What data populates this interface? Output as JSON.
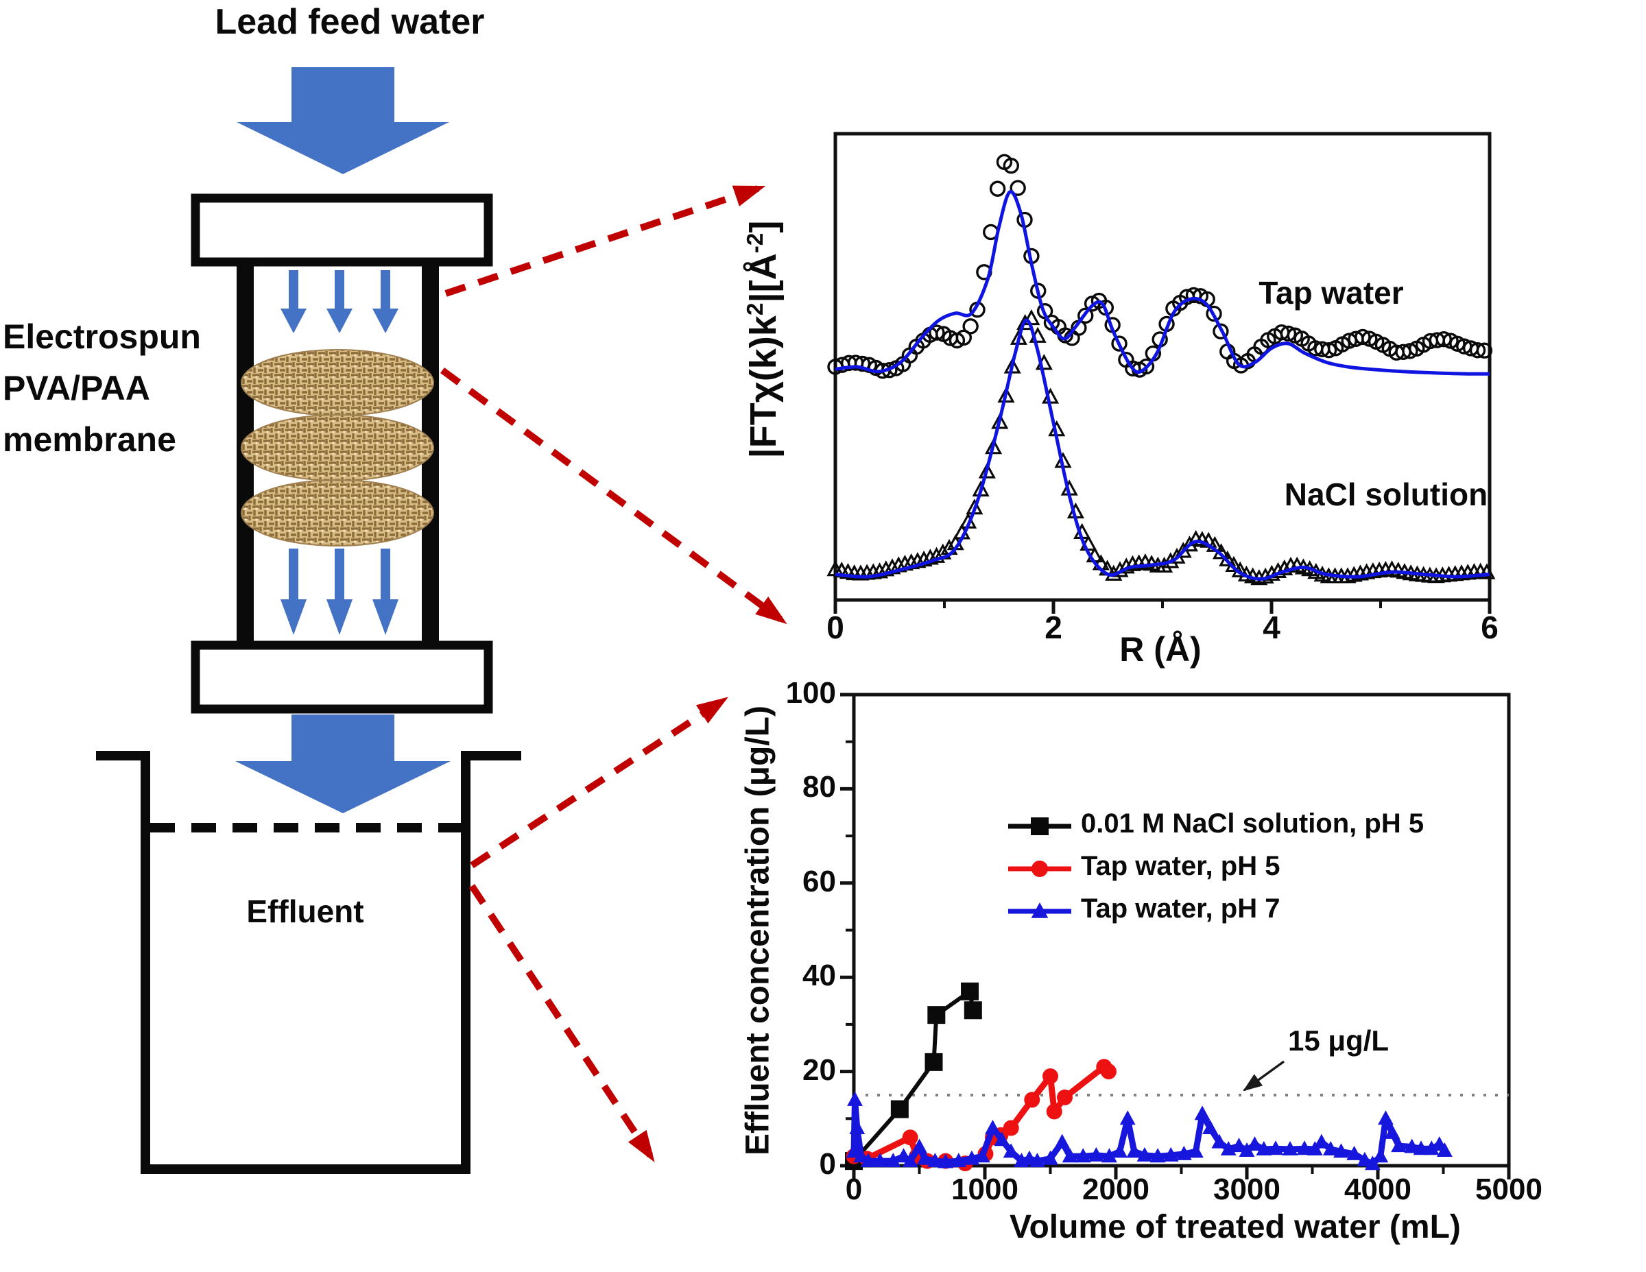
{
  "figure": {
    "title": "Lead feed water",
    "membrane_label_lines": [
      "Electrospun",
      "PVA/PAA",
      "membrane"
    ],
    "effluent_label": "Effluent",
    "colors": {
      "diagram_arrow_blue": "#4472C4",
      "outline_black": "#0a0a0a",
      "membrane_tan": "#d9bd86",
      "membrane_weave_brown": "#8d6c3a",
      "red_dashed_arrow": "#C00000",
      "fit_line_blue": "#0f14e0",
      "series_red": "#ee1111",
      "series_blue": "#1616dd",
      "threshold_gray": "#808080"
    }
  },
  "chart_data": [
    {
      "type": "line",
      "id": "exafs",
      "xlabel": "R (Å)",
      "ylabel": "|FTχ(k)k2|[Å-2]",
      "ylabel_segments": [
        {
          "t": "|FTχ(k)k"
        },
        {
          "t": "2",
          "sup": true
        },
        {
          "t": "|[Å"
        },
        {
          "t": "-2",
          "sup": true
        },
        {
          "t": "]"
        }
      ],
      "xlim": [
        0,
        6
      ],
      "ylim": [
        0,
        1
      ],
      "xticks": [
        0,
        2,
        4,
        6
      ],
      "xminor": [
        1,
        3,
        5
      ],
      "grid": false,
      "legend_position": "none",
      "annotations": [
        {
          "text": "Tap water",
          "x": 4.55,
          "y": 0.66
        },
        {
          "text": "NaCl solution",
          "x": 5.05,
          "y": 0.225
        }
      ],
      "series": [
        {
          "name": "Tap water (EXAFS data)",
          "kind": "markers",
          "marker": "circle",
          "color": "#0a0a0a",
          "marker_step": 0.062,
          "points": [
            [
              0,
              0.5
            ],
            [
              0.15,
              0.51
            ],
            [
              0.3,
              0.505
            ],
            [
              0.45,
              0.49
            ],
            [
              0.6,
              0.5
            ],
            [
              0.75,
              0.545
            ],
            [
              0.9,
              0.575
            ],
            [
              1.0,
              0.57
            ],
            [
              1.1,
              0.555
            ],
            [
              1.2,
              0.565
            ],
            [
              1.3,
              0.62
            ],
            [
              1.4,
              0.75
            ],
            [
              1.5,
              0.9
            ],
            [
              1.57,
              0.955
            ],
            [
              1.65,
              0.91
            ],
            [
              1.75,
              0.8
            ],
            [
              1.85,
              0.67
            ],
            [
              1.95,
              0.6
            ],
            [
              2.05,
              0.585
            ],
            [
              2.15,
              0.555
            ],
            [
              2.25,
              0.59
            ],
            [
              2.35,
              0.635
            ],
            [
              2.45,
              0.645
            ],
            [
              2.55,
              0.585
            ],
            [
              2.65,
              0.52
            ],
            [
              2.75,
              0.49
            ],
            [
              2.85,
              0.5
            ],
            [
              2.95,
              0.545
            ],
            [
              3.1,
              0.625
            ],
            [
              3.25,
              0.655
            ],
            [
              3.4,
              0.65
            ],
            [
              3.5,
              0.6
            ],
            [
              3.6,
              0.53
            ],
            [
              3.7,
              0.5
            ],
            [
              3.8,
              0.515
            ],
            [
              3.95,
              0.555
            ],
            [
              4.1,
              0.575
            ],
            [
              4.25,
              0.565
            ],
            [
              4.4,
              0.54
            ],
            [
              4.55,
              0.535
            ],
            [
              4.7,
              0.555
            ],
            [
              4.85,
              0.565
            ],
            [
              5.0,
              0.55
            ],
            [
              5.15,
              0.53
            ],
            [
              5.3,
              0.535
            ],
            [
              5.45,
              0.555
            ],
            [
              5.6,
              0.56
            ],
            [
              5.75,
              0.545
            ],
            [
              5.9,
              0.535
            ],
            [
              6.0,
              0.535
            ]
          ]
        },
        {
          "name": "Tap water (fit)",
          "kind": "line",
          "color": "#0f14e0",
          "width": 5,
          "points": [
            [
              0,
              0.495
            ],
            [
              0.2,
              0.5
            ],
            [
              0.4,
              0.49
            ],
            [
              0.6,
              0.51
            ],
            [
              0.8,
              0.565
            ],
            [
              0.95,
              0.6
            ],
            [
              1.1,
              0.615
            ],
            [
              1.25,
              0.615
            ],
            [
              1.4,
              0.69
            ],
            [
              1.5,
              0.8
            ],
            [
              1.6,
              0.875
            ],
            [
              1.7,
              0.83
            ],
            [
              1.8,
              0.72
            ],
            [
              1.9,
              0.625
            ],
            [
              2.0,
              0.585
            ],
            [
              2.1,
              0.56
            ],
            [
              2.2,
              0.585
            ],
            [
              2.35,
              0.63
            ],
            [
              2.45,
              0.635
            ],
            [
              2.55,
              0.575
            ],
            [
              2.7,
              0.505
            ],
            [
              2.8,
              0.49
            ],
            [
              2.95,
              0.53
            ],
            [
              3.1,
              0.615
            ],
            [
              3.25,
              0.645
            ],
            [
              3.4,
              0.635
            ],
            [
              3.55,
              0.575
            ],
            [
              3.7,
              0.505
            ],
            [
              3.85,
              0.51
            ],
            [
              4.0,
              0.54
            ],
            [
              4.15,
              0.55
            ],
            [
              4.3,
              0.53
            ],
            [
              4.5,
              0.51
            ],
            [
              4.7,
              0.5
            ],
            [
              4.9,
              0.495
            ],
            [
              5.2,
              0.49
            ],
            [
              5.5,
              0.487
            ],
            [
              5.8,
              0.485
            ],
            [
              6.0,
              0.485
            ]
          ]
        },
        {
          "name": "NaCl solution (EXAFS data)",
          "kind": "markers",
          "marker": "triangle",
          "color": "#0a0a0a",
          "marker_step": 0.058,
          "points": [
            [
              0,
              0.065
            ],
            [
              0.2,
              0.055
            ],
            [
              0.4,
              0.06
            ],
            [
              0.6,
              0.075
            ],
            [
              0.8,
              0.085
            ],
            [
              0.95,
              0.095
            ],
            [
              1.1,
              0.12
            ],
            [
              1.25,
              0.18
            ],
            [
              1.4,
              0.28
            ],
            [
              1.55,
              0.42
            ],
            [
              1.68,
              0.56
            ],
            [
              1.78,
              0.615
            ],
            [
              1.88,
              0.55
            ],
            [
              2.0,
              0.4
            ],
            [
              2.12,
              0.26
            ],
            [
              2.25,
              0.15
            ],
            [
              2.4,
              0.085
            ],
            [
              2.55,
              0.055
            ],
            [
              2.7,
              0.075
            ],
            [
              2.85,
              0.08
            ],
            [
              3.0,
              0.07
            ],
            [
              3.15,
              0.095
            ],
            [
              3.3,
              0.13
            ],
            [
              3.45,
              0.125
            ],
            [
              3.6,
              0.085
            ],
            [
              3.75,
              0.055
            ],
            [
              3.9,
              0.045
            ],
            [
              4.05,
              0.06
            ],
            [
              4.2,
              0.075
            ],
            [
              4.35,
              0.065
            ],
            [
              4.5,
              0.05
            ],
            [
              4.7,
              0.05
            ],
            [
              4.9,
              0.06
            ],
            [
              5.1,
              0.065
            ],
            [
              5.3,
              0.055
            ],
            [
              5.5,
              0.05
            ],
            [
              5.7,
              0.055
            ],
            [
              5.9,
              0.06
            ],
            [
              6.0,
              0.058
            ]
          ]
        },
        {
          "name": "NaCl solution (fit)",
          "kind": "line",
          "color": "#0f14e0",
          "width": 5,
          "points": [
            [
              0,
              0.055
            ],
            [
              0.3,
              0.05
            ],
            [
              0.6,
              0.065
            ],
            [
              0.9,
              0.085
            ],
            [
              1.1,
              0.11
            ],
            [
              1.3,
              0.21
            ],
            [
              1.5,
              0.38
            ],
            [
              1.65,
              0.53
            ],
            [
              1.75,
              0.6
            ],
            [
              1.85,
              0.54
            ],
            [
              2.0,
              0.38
            ],
            [
              2.15,
              0.22
            ],
            [
              2.3,
              0.11
            ],
            [
              2.5,
              0.055
            ],
            [
              2.7,
              0.07
            ],
            [
              2.9,
              0.075
            ],
            [
              3.1,
              0.085
            ],
            [
              3.3,
              0.125
            ],
            [
              3.5,
              0.105
            ],
            [
              3.7,
              0.06
            ],
            [
              3.9,
              0.045
            ],
            [
              4.1,
              0.06
            ],
            [
              4.3,
              0.07
            ],
            [
              4.5,
              0.055
            ],
            [
              4.8,
              0.05
            ],
            [
              5.1,
              0.06
            ],
            [
              5.4,
              0.055
            ],
            [
              5.7,
              0.05
            ],
            [
              6.0,
              0.055
            ]
          ]
        }
      ]
    },
    {
      "type": "line",
      "id": "breakthrough",
      "xlabel": "Volume of treated water (mL)",
      "ylabel": "Effluent concentration (μg/L)",
      "xlim": [
        0,
        5000
      ],
      "ylim": [
        0,
        100
      ],
      "xticks": [
        0,
        1000,
        2000,
        3000,
        4000,
        5000
      ],
      "xminor": [
        500,
        1500,
        2500,
        3500,
        4500
      ],
      "yticks": [
        0,
        20,
        40,
        60,
        80,
        100
      ],
      "yminor": [
        10,
        30,
        50,
        70,
        90
      ],
      "grid": false,
      "legend_position": "upper-center",
      "threshold": {
        "y": 15,
        "label": "15 μg/L"
      },
      "series": [
        {
          "name": "0.01 M NaCl solution, pH 5",
          "kind": "line+markers",
          "marker": "square",
          "color": "#0a0a0a",
          "width": 6,
          "points": [
            [
              0,
              1
            ],
            [
              350,
              12
            ],
            [
              610,
              22
            ],
            [
              630,
              32
            ],
            [
              885,
              37
            ],
            [
              910,
              33
            ]
          ]
        },
        {
          "name": "Tap water, pH 5",
          "kind": "line+markers",
          "marker": "circle",
          "color": "#ee1111",
          "width": 9,
          "points": [
            [
              0,
              2
            ],
            [
              100,
              1.5
            ],
            [
              430,
              6
            ],
            [
              480,
              2
            ],
            [
              560,
              1
            ],
            [
              700,
              1
            ],
            [
              850,
              0.5
            ],
            [
              1005,
              2.5
            ],
            [
              1060,
              6
            ],
            [
              1120,
              6.5
            ],
            [
              1200,
              8
            ],
            [
              1360,
              14
            ],
            [
              1500,
              19
            ],
            [
              1530,
              11.5
            ],
            [
              1610,
              14.5
            ],
            [
              1910,
              21
            ],
            [
              1945,
              20
            ]
          ]
        },
        {
          "name": "Tap water, pH 7",
          "kind": "line+markers",
          "marker": "triangle",
          "color": "#1616dd",
          "width": 9,
          "points": [
            [
              0,
              3
            ],
            [
              8,
              14
            ],
            [
              25,
              8
            ],
            [
              55,
              2
            ],
            [
              110,
              1
            ],
            [
              200,
              1
            ],
            [
              300,
              1
            ],
            [
              380,
              2
            ],
            [
              430,
              1
            ],
            [
              500,
              4
            ],
            [
              540,
              1.5
            ],
            [
              620,
              1
            ],
            [
              700,
              0.8
            ],
            [
              800,
              1
            ],
            [
              900,
              1.5
            ],
            [
              980,
              2
            ],
            [
              1060,
              8
            ],
            [
              1130,
              5.5
            ],
            [
              1200,
              3
            ],
            [
              1280,
              1
            ],
            [
              1340,
              1.5
            ],
            [
              1400,
              1
            ],
            [
              1500,
              1.5
            ],
            [
              1590,
              5
            ],
            [
              1650,
              2
            ],
            [
              1750,
              2
            ],
            [
              1850,
              2.2
            ],
            [
              1950,
              2
            ],
            [
              2030,
              3
            ],
            [
              2090,
              10
            ],
            [
              2140,
              3
            ],
            [
              2220,
              2.2
            ],
            [
              2320,
              2
            ],
            [
              2420,
              2.2
            ],
            [
              2520,
              2.5
            ],
            [
              2610,
              3
            ],
            [
              2660,
              11
            ],
            [
              2720,
              8
            ],
            [
              2790,
              5
            ],
            [
              2860,
              3.5
            ],
            [
              2940,
              4.2
            ],
            [
              3000,
              3.2
            ],
            [
              3060,
              4.5
            ],
            [
              3130,
              3.5
            ],
            [
              3220,
              3.6
            ],
            [
              3330,
              3.5
            ],
            [
              3440,
              3.6
            ],
            [
              3520,
              3.5
            ],
            [
              3570,
              5
            ],
            [
              3640,
              3.5
            ],
            [
              3720,
              3
            ],
            [
              3820,
              2.5
            ],
            [
              3900,
              1.2
            ],
            [
              3960,
              0.4
            ],
            [
              4020,
              2
            ],
            [
              4060,
              10
            ],
            [
              4110,
              7
            ],
            [
              4160,
              4.2
            ],
            [
              4260,
              4
            ],
            [
              4330,
              3.6
            ],
            [
              4410,
              3.6
            ],
            [
              4470,
              4.5
            ],
            [
              4510,
              3.2
            ]
          ]
        }
      ]
    }
  ]
}
